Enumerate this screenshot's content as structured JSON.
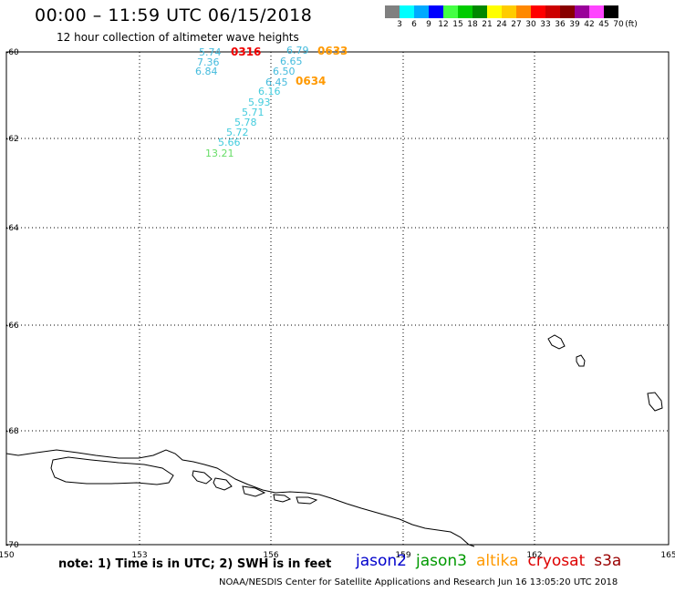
{
  "header": {
    "title": "00:00 – 11:59 UTC 06/15/2018",
    "subtitle": "12 hour collection of altimeter wave heights"
  },
  "legend": {
    "unit": "(ft)",
    "bins": [
      {
        "label": "3",
        "color": "#808080"
      },
      {
        "label": "6",
        "color": "#00ffff"
      },
      {
        "label": "9",
        "color": "#00aaff"
      },
      {
        "label": "12",
        "color": "#0000ff"
      },
      {
        "label": "15",
        "color": "#44ff44"
      },
      {
        "label": "18",
        "color": "#00cc00"
      },
      {
        "label": "21",
        "color": "#008800"
      },
      {
        "label": "24",
        "color": "#ffff00"
      },
      {
        "label": "27",
        "color": "#ffcc00"
      },
      {
        "label": "30",
        "color": "#ff8800"
      },
      {
        "label": "33",
        "color": "#ff0000"
      },
      {
        "label": "36",
        "color": "#cc0000"
      },
      {
        "label": "39",
        "color": "#880000"
      },
      {
        "label": "42",
        "color": "#990099"
      },
      {
        "label": "45",
        "color": "#ff44ff"
      },
      {
        "label": "70",
        "color": "#000000"
      }
    ]
  },
  "axes": {
    "lon_labels": [
      "150",
      "153",
      "156",
      "159",
      "162",
      "165"
    ],
    "lat_labels": [
      "-60",
      "-62",
      "-64",
      "-66",
      "-68",
      "-70"
    ]
  },
  "wave_heights": [
    {
      "value": "5.74",
      "color": "#44bbdd"
    },
    {
      "value": "6.79",
      "color": "#44bbdd"
    },
    {
      "value": "7.36",
      "color": "#44bbdd"
    },
    {
      "value": "6.65",
      "color": "#44bbdd"
    },
    {
      "value": "6.84",
      "color": "#44bbdd"
    },
    {
      "value": "6.50",
      "color": "#44bbdd"
    },
    {
      "value": "6.45",
      "color": "#44bbdd"
    },
    {
      "value": "6.16",
      "color": "#44ccdd"
    },
    {
      "value": "5.93",
      "color": "#44ccdd"
    },
    {
      "value": "5.71",
      "color": "#44ccdd"
    },
    {
      "value": "5.78",
      "color": "#44ccdd"
    },
    {
      "value": "5.72",
      "color": "#44ccdd"
    },
    {
      "value": "5.66",
      "color": "#44ccdd"
    },
    {
      "value": "13.21",
      "color": "#66dd66"
    }
  ],
  "pass_times": [
    {
      "value": "0316",
      "color": "#ee0000"
    },
    {
      "value": "0633",
      "color": "#ff9900"
    },
    {
      "value": "0634",
      "color": "#ff9900"
    }
  ],
  "footer": {
    "note": "note: 1) Time is in UTC; 2) SWH is in feet",
    "satellites": [
      {
        "name": "jason2",
        "color": "#0000cc"
      },
      {
        "name": "jason3",
        "color": "#009900"
      },
      {
        "name": "altika",
        "color": "#ff9900"
      },
      {
        "name": "cryosat",
        "color": "#dd0000"
      },
      {
        "name": "s3a",
        "color": "#990000"
      }
    ],
    "credit": "NOAA/NESDIS Center for Satellite Applications and Research    Jun 16 13:05:20 UTC 2018"
  }
}
